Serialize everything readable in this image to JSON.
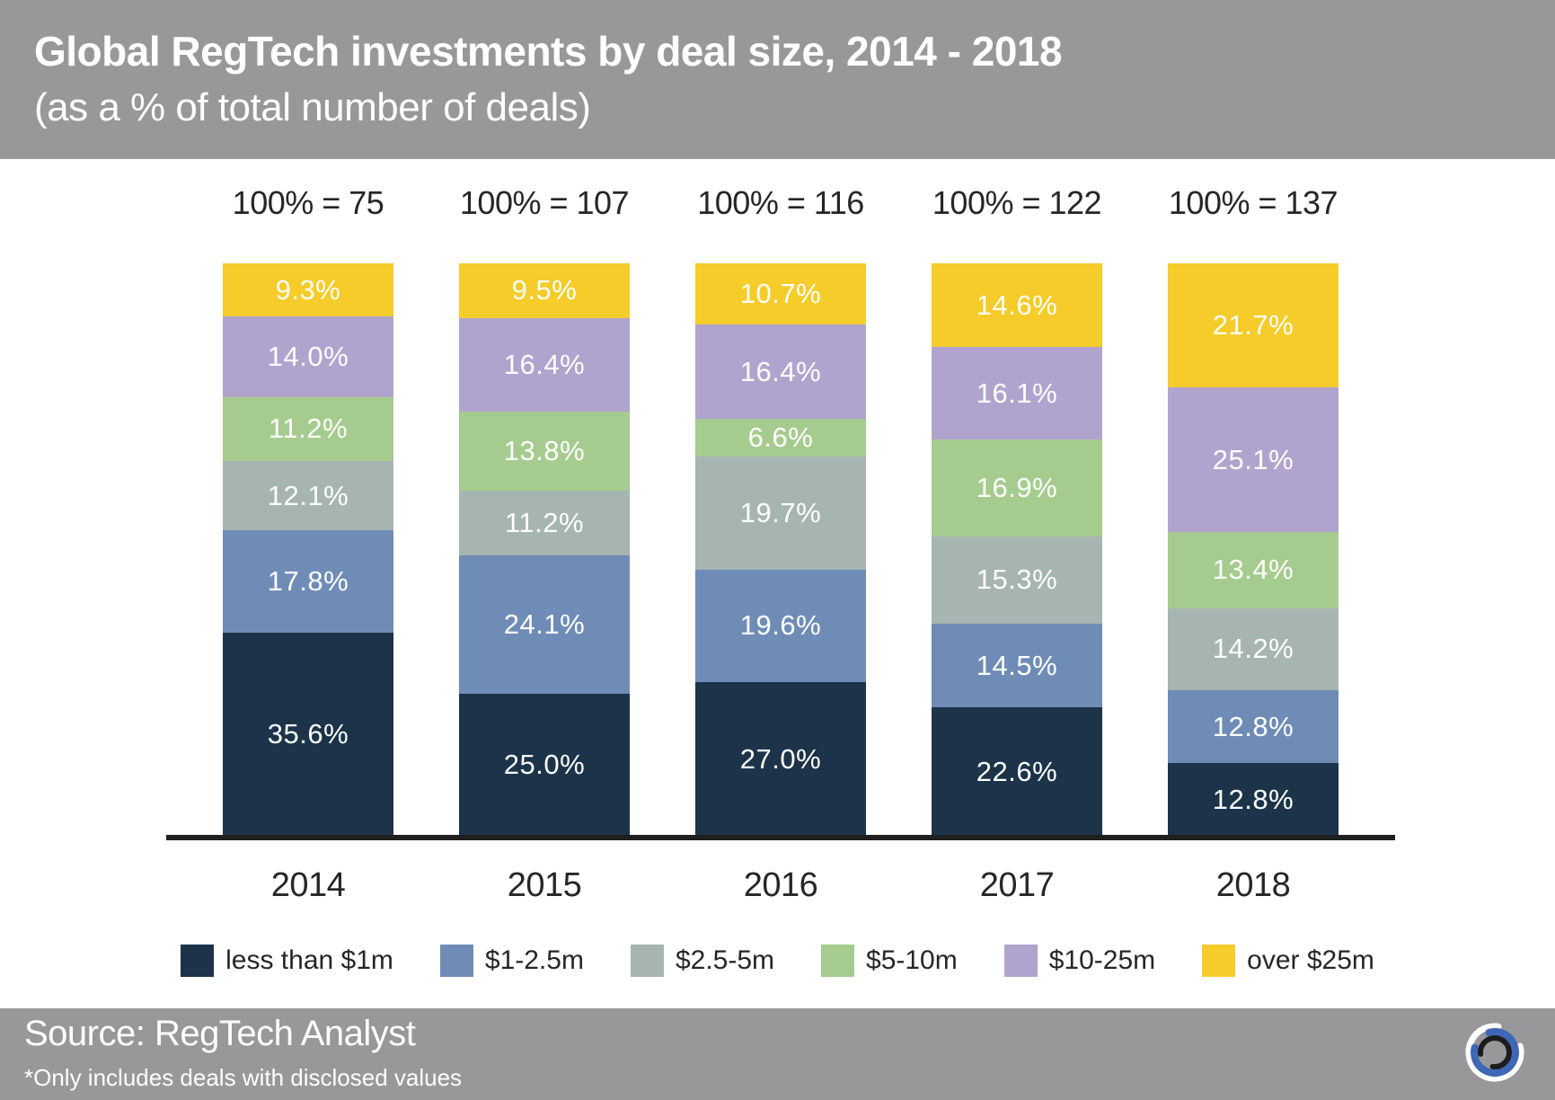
{
  "header": {
    "title": "Global RegTech investments by deal size, 2014 - 2018",
    "subtitle": "(as a % of total number of deals)"
  },
  "chart_data": {
    "type": "bar",
    "variant": "100%-stacked-vertical",
    "title": "Global RegTech investments by deal size, 2014 - 2018 (as a % of total number of deals)",
    "categories": [
      "2014",
      "2015",
      "2016",
      "2017",
      "2018"
    ],
    "totals": [
      75,
      107,
      116,
      122,
      137
    ],
    "totals_labels": [
      "100% = 75",
      "100% = 107",
      "100% = 116",
      "100% = 122",
      "100% = 137"
    ],
    "ylim": [
      0,
      100
    ],
    "unit": "%",
    "grid": false,
    "legend_position": "bottom",
    "axis_line_color": "#1F1F1F",
    "series": [
      {
        "name": "less than $1m",
        "color": "#1C3349",
        "values": [
          35.6,
          25.0,
          27.0,
          22.6,
          12.8
        ],
        "labels": [
          "35.6%",
          "25.0%",
          "27.0%",
          "22.6%",
          "12.8%"
        ]
      },
      {
        "name": "$1-2.5m",
        "color": "#6F8CB7",
        "values": [
          17.8,
          24.1,
          19.6,
          14.5,
          12.8
        ],
        "labels": [
          "17.8%",
          "24.1%",
          "19.6%",
          "14.5%",
          "12.8%"
        ]
      },
      {
        "name": "$2.5-5m",
        "color": "#A6B5B2",
        "values": [
          12.1,
          11.2,
          19.7,
          15.3,
          14.2
        ],
        "labels": [
          "12.1%",
          "11.2%",
          "19.7%",
          "15.3%",
          "14.2%"
        ]
      },
      {
        "name": "$5-10m",
        "color": "#A5CC8E",
        "values": [
          11.2,
          13.8,
          6.6,
          16.9,
          13.4
        ],
        "labels": [
          "11.2%",
          "13.8%",
          "6.6%",
          "16.9%",
          "13.4%"
        ]
      },
      {
        "name": "$10-25m",
        "color": "#B0A4CE",
        "values": [
          14.0,
          16.4,
          16.4,
          16.1,
          25.1
        ],
        "labels": [
          "14.0%",
          "16.4%",
          "16.4%",
          "16.1%",
          "25.1%"
        ]
      },
      {
        "name": "over $25m",
        "color": "#F5CC2A",
        "values": [
          9.3,
          9.5,
          10.7,
          14.6,
          21.7
        ],
        "labels": [
          "9.3%",
          "9.5%",
          "10.7%",
          "14.6%",
          "21.7%"
        ]
      }
    ]
  },
  "footer": {
    "source": "Source: RegTech Analyst",
    "footnote": "*Only includes deals with disclosed values"
  },
  "logo": {
    "name": "regtech-analyst-logo",
    "colors": {
      "outer_arc": "#FFFFFF",
      "mid_arc": "#3E67B5",
      "inner_arc": "#1C1C1C"
    }
  },
  "theme": {
    "band_gray": "#98989A",
    "label_dark": "#262626",
    "background": "#FFFFFF"
  }
}
